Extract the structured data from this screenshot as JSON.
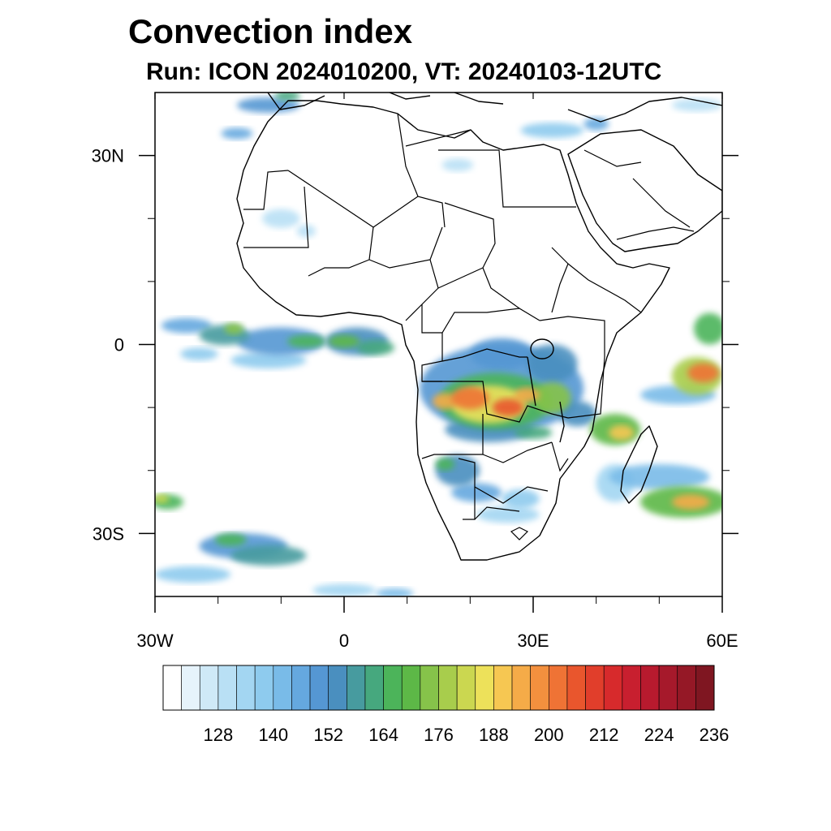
{
  "header": {
    "title": "Convection index",
    "subtitle": "Run: ICON 2024010200,  VT: 20240103-12UTC"
  },
  "map": {
    "projection": "lat-lon",
    "lon_range": [
      -30,
      60
    ],
    "lat_range": [
      -40,
      40
    ],
    "lon_tick_labels": [
      {
        "lon": -30,
        "label": "30W"
      },
      {
        "lon": 0,
        "label": "0"
      },
      {
        "lon": 30,
        "label": "30E"
      },
      {
        "lon": 60,
        "label": "60E"
      }
    ],
    "lat_tick_labels": [
      {
        "lat": 30,
        "label": "30N"
      },
      {
        "lat": 0,
        "label": "0"
      },
      {
        "lat": -30,
        "label": "30S"
      }
    ],
    "minor_lon_ticks": [
      -20,
      -10,
      10,
      20,
      40,
      50
    ],
    "minor_lat_ticks": [
      20,
      10,
      -10,
      -20
    ],
    "coastline_color": "#000000",
    "land_fill": "#ffffff",
    "ocean_fill": "#ffffff"
  },
  "colorbar": {
    "colors": [
      "#ffffff",
      "#e6f3fb",
      "#cfe9f7",
      "#b9e0f5",
      "#a3d6f2",
      "#8ecbee",
      "#79bbe8",
      "#65a8df",
      "#5597d3",
      "#4a8fbf",
      "#479b9f",
      "#46a87e",
      "#4cb45a",
      "#5db847",
      "#86c34a",
      "#a8cd4c",
      "#cbd750",
      "#ede15a",
      "#f6c752",
      "#f5ab48",
      "#f3903e",
      "#ef7335",
      "#e9562d",
      "#e13e2b",
      "#d72a2c",
      "#c81f2f",
      "#b81a2e",
      "#a6192b",
      "#951826",
      "#7f1621"
    ],
    "labels": [
      "128",
      "140",
      "152",
      "164",
      "176",
      "188",
      "200",
      "212",
      "224",
      "236"
    ]
  },
  "field": {
    "name": "Convection index",
    "blobs": [
      {
        "lon": -19,
        "lat": 1.5,
        "rx": 4,
        "ry": 1.6,
        "level": 10
      },
      {
        "lon": -17.5,
        "lat": 2.5,
        "rx": 1.5,
        "ry": 0.9,
        "level": 14
      },
      {
        "lon": -25,
        "lat": 3,
        "rx": 4,
        "ry": 1.2,
        "level": 7
      },
      {
        "lon": -10,
        "lat": 0.5,
        "rx": 7,
        "ry": 2.2,
        "level": 8
      },
      {
        "lon": -6,
        "lat": 0.5,
        "rx": 3,
        "ry": 1,
        "level": 12
      },
      {
        "lon": 2,
        "lat": 0.5,
        "rx": 5,
        "ry": 2.2,
        "level": 9
      },
      {
        "lon": 0,
        "lat": 0.5,
        "rx": 2.5,
        "ry": 1,
        "level": 13
      },
      {
        "lon": 5,
        "lat": -0.5,
        "rx": 3,
        "ry": 1.2,
        "level": 11
      },
      {
        "lon": -23,
        "lat": -1.5,
        "rx": 3,
        "ry": 1,
        "level": 5
      },
      {
        "lon": -12,
        "lat": -2.5,
        "rx": 6,
        "ry": 1.3,
        "level": 5
      },
      {
        "lon": 25,
        "lat": -7,
        "rx": 13,
        "ry": 7,
        "level": 8
      },
      {
        "lon": 24,
        "lat": -9,
        "rx": 9,
        "ry": 4.5,
        "level": 12
      },
      {
        "lon": 23,
        "lat": -9.5,
        "rx": 6,
        "ry": 3,
        "level": 17
      },
      {
        "lon": 20,
        "lat": -8.5,
        "rx": 3,
        "ry": 1.8,
        "level": 21
      },
      {
        "lon": 26,
        "lat": -10,
        "rx": 2.5,
        "ry": 1.4,
        "level": 22
      },
      {
        "lon": 16,
        "lat": -9,
        "rx": 2,
        "ry": 1.3,
        "level": 19
      },
      {
        "lon": 29,
        "lat": -8,
        "rx": 2,
        "ry": 1.2,
        "level": 19
      },
      {
        "lon": 33,
        "lat": -8.5,
        "rx": 3,
        "ry": 2.5,
        "level": 14
      },
      {
        "lon": 33,
        "lat": -3,
        "rx": 4,
        "ry": 3,
        "level": 9
      },
      {
        "lon": 25,
        "lat": -1.5,
        "rx": 5,
        "ry": 2.5,
        "level": 8
      },
      {
        "lon": 23,
        "lat": -13.5,
        "rx": 7,
        "ry": 2,
        "level": 9
      },
      {
        "lon": 30,
        "lat": -14,
        "rx": 3,
        "ry": 1,
        "level": 11
      },
      {
        "lon": 43,
        "lat": -13.5,
        "rx": 4,
        "ry": 2.5,
        "level": 13
      },
      {
        "lon": 44,
        "lat": -14,
        "rx": 2,
        "ry": 1.2,
        "level": 18
      },
      {
        "lon": 37,
        "lat": -11,
        "rx": 3,
        "ry": 2,
        "level": 9
      },
      {
        "lon": 56,
        "lat": -5,
        "rx": 4,
        "ry": 3,
        "level": 15
      },
      {
        "lon": 57,
        "lat": -4.5,
        "rx": 2.5,
        "ry": 1.5,
        "level": 21
      },
      {
        "lon": 58,
        "lat": 2.5,
        "rx": 2.5,
        "ry": 2.5,
        "level": 12
      },
      {
        "lon": 53,
        "lat": -8,
        "rx": 6,
        "ry": 1.5,
        "level": 6
      },
      {
        "lon": 54,
        "lat": -25,
        "rx": 7,
        "ry": 2.5,
        "level": 13
      },
      {
        "lon": 55,
        "lat": -25,
        "rx": 3,
        "ry": 1.2,
        "level": 19
      },
      {
        "lon": 50,
        "lat": -21,
        "rx": 8,
        "ry": 2,
        "level": 6
      },
      {
        "lon": 43,
        "lat": -22,
        "rx": 3,
        "ry": 3,
        "level": 4
      },
      {
        "lon": 18,
        "lat": -20,
        "rx": 3.5,
        "ry": 2.5,
        "level": 9
      },
      {
        "lon": 16,
        "lat": -19,
        "rx": 1.5,
        "ry": 1,
        "level": 12
      },
      {
        "lon": 21,
        "lat": -23.5,
        "rx": 4,
        "ry": 1.5,
        "level": 7
      },
      {
        "lon": 28,
        "lat": -24.5,
        "rx": 3,
        "ry": 1.5,
        "level": 5
      },
      {
        "lon": 26,
        "lat": -27,
        "rx": 5,
        "ry": 1.3,
        "level": 4
      },
      {
        "lon": -28,
        "lat": -25,
        "rx": 2.5,
        "ry": 1.2,
        "level": 12
      },
      {
        "lon": -29,
        "lat": -24.5,
        "rx": 1.2,
        "ry": 0.7,
        "level": 16
      },
      {
        "lon": -16,
        "lat": -32,
        "rx": 7,
        "ry": 2,
        "level": 8
      },
      {
        "lon": -12,
        "lat": -33.5,
        "rx": 6,
        "ry": 1.6,
        "level": 10
      },
      {
        "lon": -18,
        "lat": -31,
        "rx": 2.5,
        "ry": 1,
        "level": 12
      },
      {
        "lon": -24,
        "lat": -36.5,
        "rx": 6,
        "ry": 1.3,
        "level": 5
      },
      {
        "lon": 0,
        "lat": -39,
        "rx": 5,
        "ry": 1,
        "level": 4
      },
      {
        "lon": 8,
        "lat": -39.5,
        "rx": 3,
        "ry": 0.8,
        "level": 6
      },
      {
        "lon": -12,
        "lat": 38,
        "rx": 5,
        "ry": 1.2,
        "level": 8
      },
      {
        "lon": -9,
        "lat": 39.5,
        "rx": 2,
        "ry": 0.8,
        "level": 11
      },
      {
        "lon": -17,
        "lat": 33.5,
        "rx": 2.5,
        "ry": 0.9,
        "level": 7
      },
      {
        "lon": 33,
        "lat": 34,
        "rx": 5,
        "ry": 1.2,
        "level": 5
      },
      {
        "lon": 40,
        "lat": 35,
        "rx": 2,
        "ry": 1,
        "level": 7
      },
      {
        "lon": 56,
        "lat": 38,
        "rx": 4,
        "ry": 1,
        "level": 3
      },
      {
        "lon": 18,
        "lat": 28.5,
        "rx": 2.5,
        "ry": 1,
        "level": 3
      },
      {
        "lon": -10,
        "lat": 20,
        "rx": 3,
        "ry": 1.5,
        "level": 3
      },
      {
        "lon": -6,
        "lat": 18,
        "rx": 1.5,
        "ry": 1,
        "level": 3
      }
    ]
  }
}
